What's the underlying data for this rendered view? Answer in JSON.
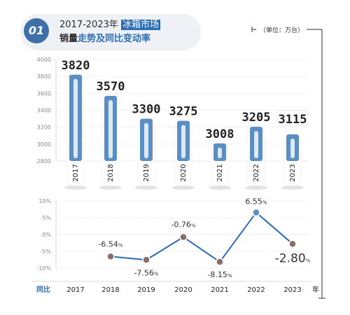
{
  "header": {
    "badge": "01",
    "line1_prefix": "2017-2023年 ",
    "line1_highlight": "冰箱市场",
    "line2_prefix": "销量",
    "line2_blue": "走势及同比变动率"
  },
  "unit": "（单位：万台）",
  "colors": {
    "bar": "#5b8ec4",
    "bar_inner": "#dce9f6",
    "highlight_label": "#3f7dbe",
    "line": "#2e6db3",
    "dot_down": "#8a6d63",
    "dot_up": "#5b8ec4"
  },
  "chart_data": [
    {
      "type": "bar",
      "categories": [
        "2017",
        "2018",
        "2019",
        "2020",
        "2021",
        "2022",
        "2023"
      ],
      "values": [
        3820,
        3570,
        3300,
        3275,
        3008,
        3205,
        3115
      ],
      "value_labels": [
        "3820",
        "3570",
        "3300",
        "3275",
        "3008",
        "3205",
        "3115"
      ],
      "ylim": [
        2800,
        4000
      ],
      "yticks": [
        "2800",
        "3000",
        "3200",
        "3400",
        "3600",
        "3800",
        "4000"
      ],
      "grid": true,
      "highlighted_category": "2023"
    },
    {
      "type": "line",
      "row_label": "同比",
      "x": [
        "2017",
        "2018",
        "2019",
        "2020",
        "2021",
        "2022",
        "2023"
      ],
      "x_suffix": "年",
      "points": [
        {
          "x": "2018",
          "y": -6.54,
          "label": "-6.54",
          "sfx": "%"
        },
        {
          "x": "2019",
          "y": -7.56,
          "label": "-7.56",
          "sfx": "%"
        },
        {
          "x": "2020",
          "y": -0.76,
          "label": "-0.76",
          "sfx": "%"
        },
        {
          "x": "2021",
          "y": -8.15,
          "label": "-8.15",
          "sfx": "%"
        },
        {
          "x": "2022",
          "y": 6.55,
          "label": "6.55",
          "sfx": "%"
        },
        {
          "x": "2023",
          "y": -2.8,
          "label": "-2.80",
          "sfx": "%"
        }
      ],
      "ylim": [
        -10,
        10
      ],
      "yticks": [
        "10%",
        "5%",
        "0%",
        "-5%",
        "-10%"
      ],
      "grid": true
    }
  ]
}
